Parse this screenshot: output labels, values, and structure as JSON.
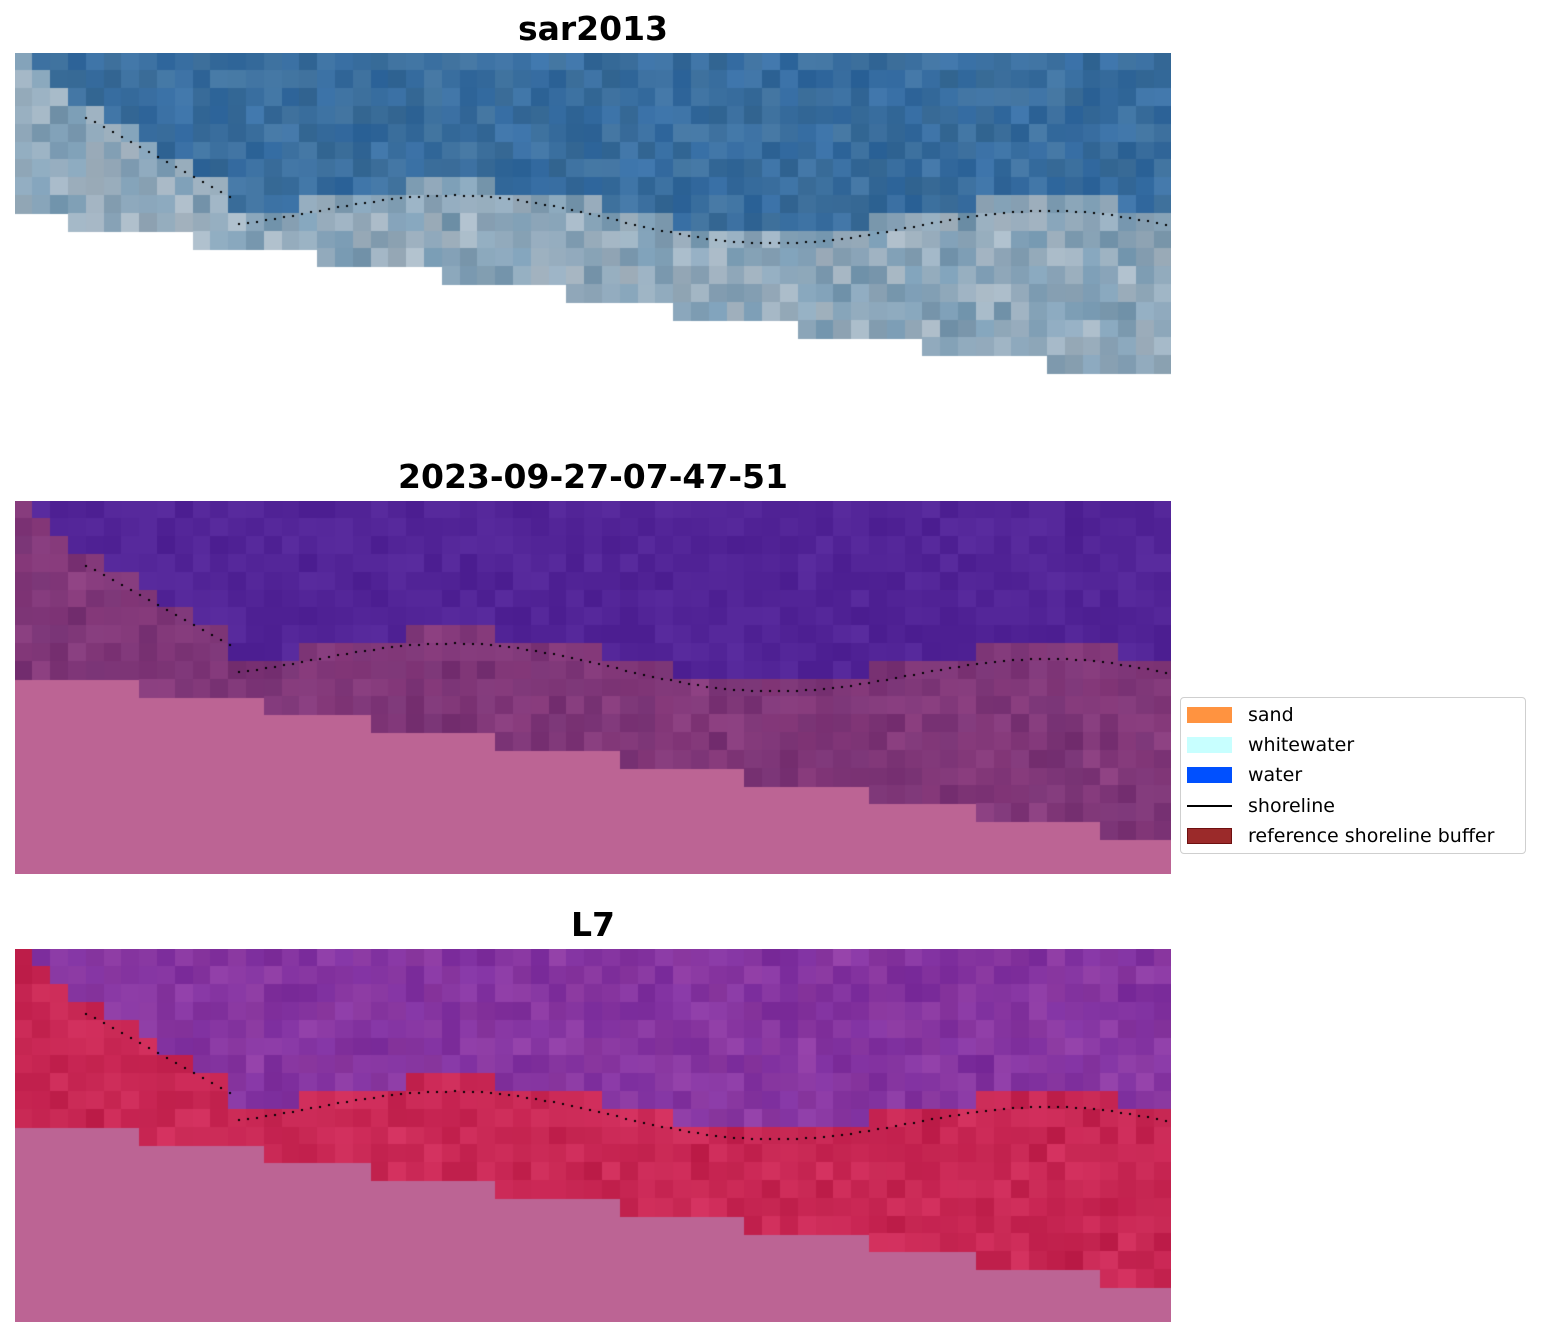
{
  "panels": [
    {
      "title": "sar2013"
    },
    {
      "title": "2023-09-27-07-47-51"
    },
    {
      "title": "L7"
    }
  ],
  "legend": {
    "items": [
      {
        "label": "sand",
        "color": "#ff9340",
        "kind": "patch"
      },
      {
        "label": "whitewater",
        "color": "#c8ffff",
        "kind": "patch"
      },
      {
        "label": "water",
        "color": "#0050ff",
        "kind": "patch"
      },
      {
        "label": "shoreline",
        "color": "#000000",
        "kind": "line"
      },
      {
        "label": "reference shoreline buffer",
        "color": "#9b2a2a",
        "kind": "patch"
      }
    ]
  },
  "colors": {
    "sar_ocean": "#3d6f9a",
    "sar_surf": "#a9b8c4",
    "sar_nodata": "#ffffff",
    "class_water": "#522497",
    "class_buffer": "#8a3d7e",
    "class_nodata": "#bc6494",
    "l7_water": "#7e2f9f",
    "l7_buffer": "#c2224e",
    "l7_nodata": "#bc6494",
    "shoreline": "#000000"
  }
}
